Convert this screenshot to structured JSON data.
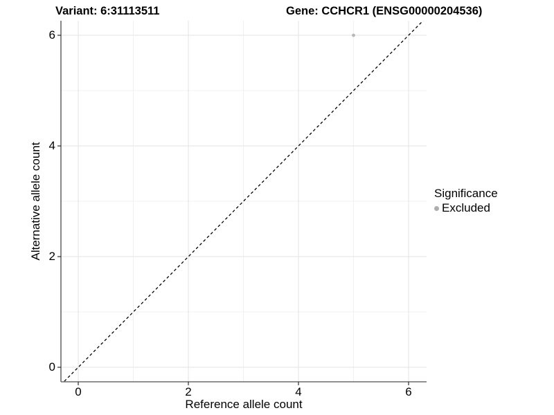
{
  "header": {
    "variant_title": "Variant: 6:31113511",
    "gene_title": "Gene: CCHCR1 (ENSG00000204536)"
  },
  "legend": {
    "title": "Significance",
    "items": [
      {
        "label": "Excluded",
        "color": "#aeaeae"
      }
    ]
  },
  "chart_data": {
    "type": "scatter",
    "title_left": "Variant: 6:31113511",
    "title_right": "Gene: CCHCR1 (ENSG00000204536)",
    "xlabel": "Reference allele count",
    "ylabel": "Alternative allele count",
    "xlim": [
      -0.32,
      6.32
    ],
    "ylim": [
      -0.32,
      6.32
    ],
    "x_ticks": [
      0,
      2,
      4,
      6
    ],
    "y_ticks": [
      0,
      2,
      4,
      6
    ],
    "x_minor_ticks": [
      1,
      3,
      5
    ],
    "y_minor_ticks": [
      1,
      3,
      5
    ],
    "grid": true,
    "legend_position": "right",
    "series": [
      {
        "name": "Excluded",
        "color": "#b8b8b8",
        "points": [
          {
            "x": 5,
            "y": 6
          }
        ]
      }
    ],
    "reference_line": {
      "type": "identity y=x",
      "style": "dashed",
      "color": "#000000"
    },
    "colors": {
      "major_grid": "#e3e3e3",
      "minor_grid": "#f0f0f0",
      "axis_line": "#6b6b6b",
      "tick_mark": "#2b2b2b",
      "background": "#ffffff"
    }
  }
}
